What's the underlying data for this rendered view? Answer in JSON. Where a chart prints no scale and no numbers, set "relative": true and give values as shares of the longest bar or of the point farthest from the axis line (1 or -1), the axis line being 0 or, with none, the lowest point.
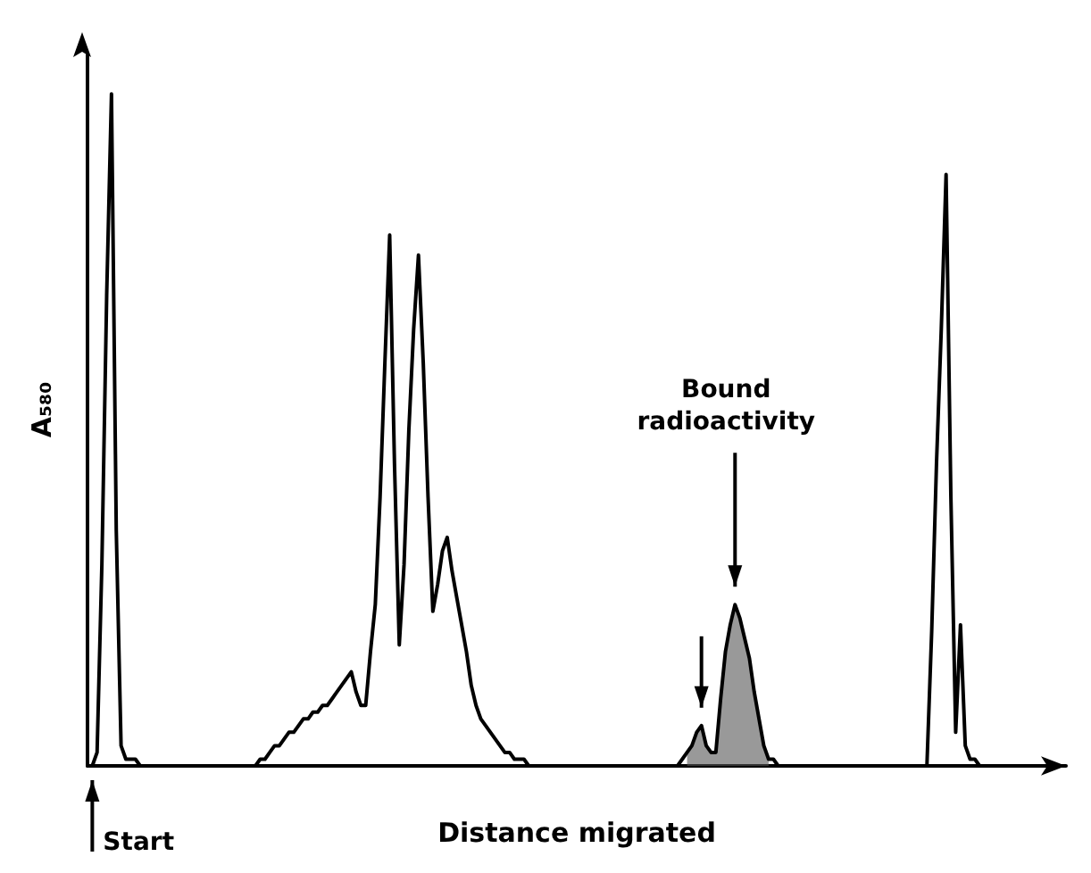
{
  "chart_data": {
    "type": "line",
    "relative": true,
    "ylabel": "A₅₈₀",
    "xlabel": "Distance migrated",
    "grid": false,
    "marker": "none",
    "line_style": "solid",
    "annotations": [
      "Start",
      "Bound radioactivity"
    ],
    "categories": [
      null,
      null,
      null,
      null,
      null,
      null,
      null,
      null,
      null,
      null,
      null,
      null,
      null,
      null,
      null,
      null,
      null,
      null,
      null,
      null,
      null,
      null,
      null,
      null,
      null,
      null,
      null,
      null,
      null,
      null,
      null,
      null,
      null,
      null,
      null,
      null,
      null,
      null,
      null,
      null,
      null,
      null,
      null,
      null,
      null,
      null,
      null,
      null,
      null,
      null,
      null,
      null,
      null,
      null,
      null,
      null,
      null,
      null,
      null,
      null,
      null,
      null,
      null,
      null,
      null,
      null,
      null,
      null,
      null,
      null,
      null,
      null,
      null,
      null,
      null,
      null,
      null,
      null,
      null,
      null,
      null,
      null,
      null,
      null,
      null,
      null,
      null,
      null,
      null,
      null,
      null,
      null,
      null,
      null,
      null,
      null,
      null,
      null,
      null,
      null,
      null,
      null,
      null,
      null,
      null,
      null,
      null,
      null,
      null,
      null,
      null,
      null,
      null,
      null,
      null,
      null,
      null,
      null,
      null,
      null,
      null,
      null,
      null,
      null,
      null,
      null,
      null,
      null,
      null,
      null,
      null,
      null,
      null,
      null,
      null,
      null,
      null,
      null,
      null,
      null,
      null,
      null,
      null,
      null,
      null,
      null,
      null,
      null,
      null,
      null,
      null,
      null,
      null,
      null,
      null,
      null,
      null,
      null,
      null,
      null,
      null,
      null,
      null,
      null,
      null,
      null,
      null,
      null,
      null,
      null,
      null,
      null,
      null,
      null,
      null,
      null,
      null,
      null,
      null,
      null,
      null,
      null,
      null,
      null,
      null,
      null,
      null,
      null,
      null,
      null,
      null,
      null,
      null,
      null,
      null,
      null,
      null,
      null,
      null,
      null,
      null,
      null,
      null,
      null,
      null
    ],
    "series": [
      {
        "color": "#000000",
        "values": [
          0,
          0,
          0.02,
          0.3,
          0.7,
          1,
          0.35,
          0.03,
          0.01,
          0.01,
          0.01,
          0,
          0,
          0,
          0,
          0,
          0,
          0,
          0,
          0,
          0,
          0,
          0,
          0,
          0,
          0,
          0,
          0,
          0,
          0,
          0,
          0,
          0,
          0,
          0,
          0,
          0.01,
          0.01,
          0.02,
          0.03,
          0.03,
          0.04,
          0.05,
          0.05,
          0.06,
          0.07,
          0.07,
          0.08,
          0.08,
          0.09,
          0.09,
          0.1,
          0.11,
          0.12,
          0.13,
          0.14,
          0.11,
          0.09,
          0.09,
          0.17,
          0.24,
          0.4,
          0.6,
          0.79,
          0.45,
          0.18,
          0.3,
          0.5,
          0.65,
          0.76,
          0.6,
          0.4,
          0.23,
          0.27,
          0.32,
          0.34,
          0.29,
          0.25,
          0.21,
          0.17,
          0.12,
          0.09,
          0.07,
          0.06,
          0.05,
          0.04,
          0.03,
          0.02,
          0.02,
          0.01,
          0.01,
          0.01,
          0,
          0,
          0,
          0,
          0,
          0,
          0,
          0,
          0,
          0,
          0,
          0,
          0,
          0,
          0,
          0,
          0,
          0,
          0,
          0,
          0,
          0,
          0,
          0,
          0,
          0,
          0,
          0,
          0,
          0,
          0,
          0,
          0.01,
          0.02,
          0.03,
          0.05,
          0.06,
          0.03,
          0.02,
          0.02,
          0.1,
          0.17,
          0.21,
          0.24,
          0.22,
          0.19,
          0.16,
          0.11,
          0.07,
          0.03,
          0.01,
          0.01,
          0,
          0,
          0,
          0,
          0,
          0,
          0,
          0,
          0,
          0,
          0,
          0,
          0,
          0,
          0,
          0,
          0,
          0,
          0,
          0,
          0,
          0,
          0,
          0,
          0,
          0,
          0,
          0,
          0,
          0,
          0,
          0,
          0.2,
          0.45,
          0.65,
          0.88,
          0.4,
          0.05,
          0.21,
          0.03,
          0.01,
          0.01,
          0,
          0,
          0,
          0,
          0,
          0,
          0,
          0,
          0,
          0,
          0,
          0,
          0,
          0,
          0,
          0,
          0,
          0,
          0
        ]
      },
      {
        "type": "area",
        "color": "#555555",
        "values": [
          null,
          null,
          null,
          null,
          null,
          null,
          null,
          null,
          null,
          null,
          null,
          null,
          null,
          null,
          null,
          null,
          null,
          null,
          null,
          null,
          null,
          null,
          null,
          null,
          null,
          null,
          null,
          null,
          null,
          null,
          null,
          null,
          null,
          null,
          null,
          null,
          null,
          null,
          null,
          null,
          null,
          null,
          null,
          null,
          null,
          null,
          null,
          null,
          null,
          null,
          null,
          null,
          null,
          null,
          null,
          null,
          null,
          null,
          null,
          null,
          null,
          null,
          null,
          null,
          null,
          null,
          null,
          null,
          null,
          null,
          null,
          null,
          null,
          null,
          null,
          null,
          null,
          null,
          null,
          null,
          null,
          null,
          null,
          null,
          null,
          null,
          null,
          null,
          null,
          null,
          null,
          null,
          null,
          null,
          null,
          null,
          null,
          null,
          null,
          null,
          null,
          null,
          null,
          null,
          null,
          null,
          null,
          null,
          null,
          null,
          null,
          null,
          null,
          null,
          null,
          null,
          null,
          null,
          null,
          null,
          null,
          null,
          null,
          null,
          null,
          0.02,
          0.03,
          0.05,
          0.06,
          0.03,
          0.02,
          0.02,
          0.1,
          0.17,
          0.21,
          0.24,
          0.22,
          0.19,
          0.16,
          0.11,
          0.07,
          0.03,
          0.01,
          null,
          null,
          null,
          null,
          null,
          null,
          null,
          null,
          null,
          null,
          null,
          null,
          null,
          null,
          null,
          null,
          null,
          null,
          null,
          null,
          null,
          null,
          null,
          null,
          null,
          null,
          null,
          null,
          null,
          null,
          null,
          null,
          null,
          null,
          null,
          null,
          null,
          null,
          null,
          null,
          null,
          null,
          null,
          null,
          null,
          null,
          null,
          null,
          null,
          null,
          null,
          null,
          null,
          null,
          null,
          null,
          null,
          null,
          null,
          null,
          null,
          null
        ]
      }
    ]
  }
}
